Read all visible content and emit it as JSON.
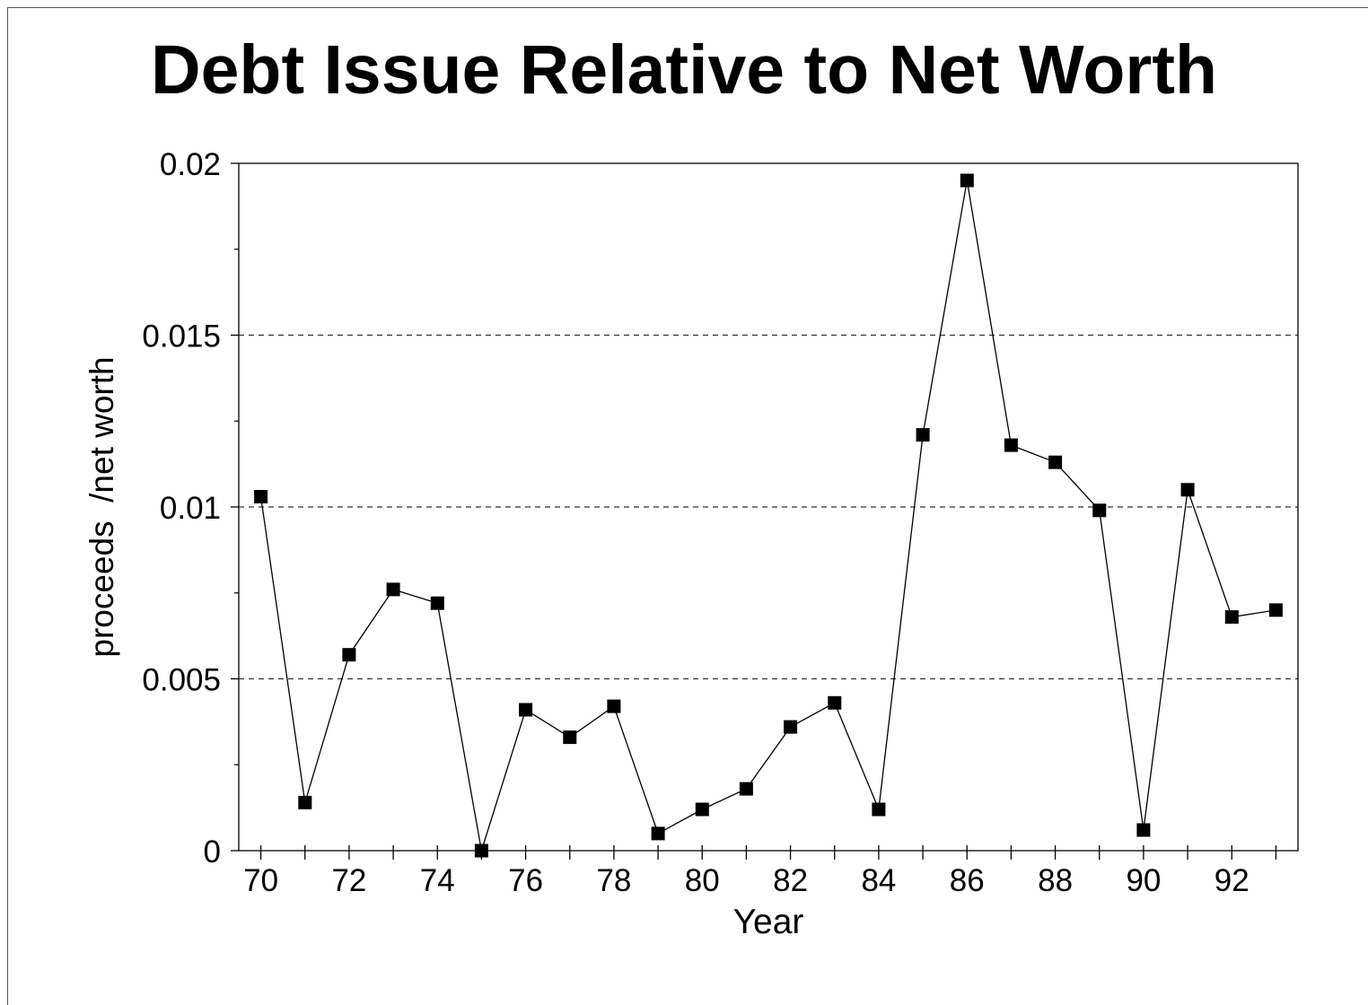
{
  "chart_data": {
    "type": "line",
    "title": "Debt Issue Relative to Net Worth",
    "xlabel": "Year",
    "ylabel": "proceeds  /net worth",
    "x": [
      70,
      71,
      72,
      73,
      74,
      75,
      76,
      77,
      78,
      79,
      80,
      81,
      82,
      83,
      84,
      85,
      86,
      87,
      88,
      89,
      90,
      91,
      92,
      93
    ],
    "series": [
      {
        "values": [
          0.0103,
          0.0014,
          0.0057,
          0.0076,
          0.0072,
          0.0,
          0.0041,
          0.0033,
          0.0042,
          0.0005,
          0.0012,
          0.0018,
          0.0036,
          0.0043,
          0.0012,
          0.0121,
          0.0195,
          0.0118,
          0.0113,
          0.0099,
          0.0006,
          0.0105,
          0.0068,
          0.007
        ]
      }
    ],
    "xlim": [
      69.5,
      93.5
    ],
    "ylim": [
      0,
      0.02
    ],
    "x_tick_labels": [
      "70",
      "72",
      "74",
      "76",
      "78",
      "80",
      "82",
      "84",
      "86",
      "88",
      "90",
      "92"
    ],
    "y_tick_labels": [
      "0",
      "0.005",
      "0.01",
      "0.015",
      "0.02"
    ],
    "grid": "horizontal dashed",
    "legend": "none",
    "colors": {
      "line": "#000000",
      "marker": "#000000",
      "grid": "#333333",
      "background": "#ffffff"
    }
  }
}
